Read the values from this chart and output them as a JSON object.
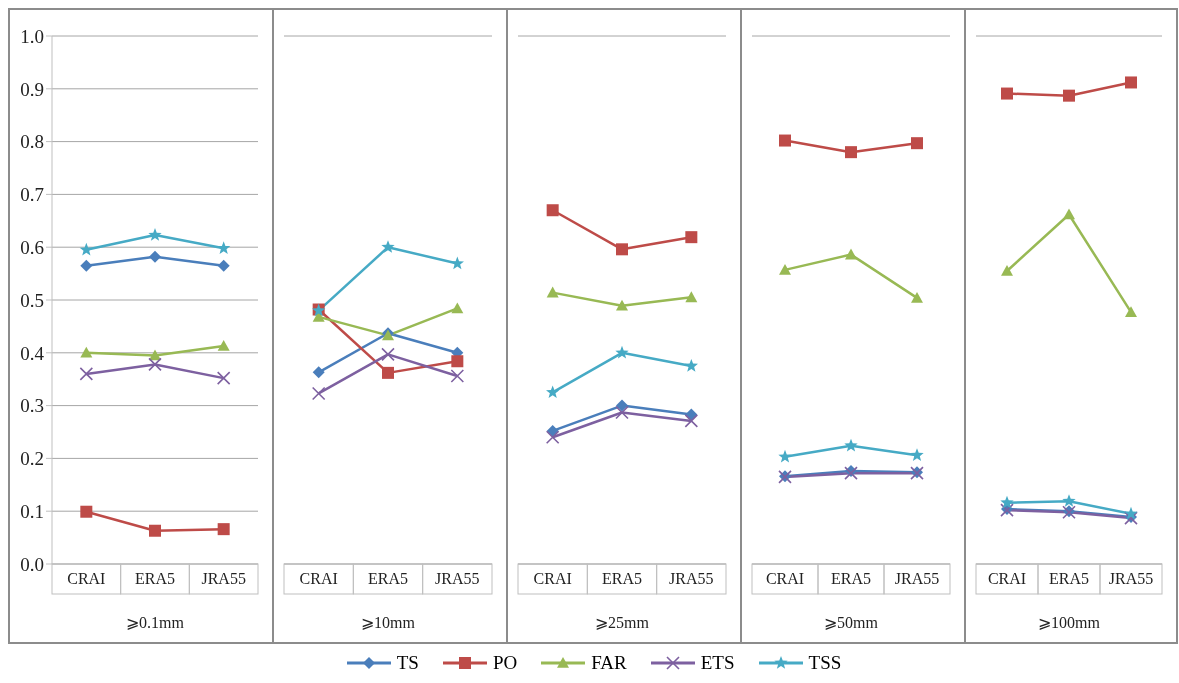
{
  "chart_data": [
    {
      "type": "line",
      "xlabel": "⩾0.1mm",
      "categories": [
        "CRAI",
        "ERA5",
        "JRA55"
      ],
      "ylim": [
        0,
        1
      ],
      "yticks": [
        {
          "value": 0,
          "label": "0.0"
        },
        0.1,
        0.2,
        0.3,
        0.4,
        0.5,
        0.6,
        0.7,
        0.8,
        0.9,
        {
          "value": 1,
          "label": "1.0"
        }
      ],
      "grid": "y",
      "legend": "bottom",
      "line_style": "solid",
      "series": [
        {
          "name": "TS",
          "color": "#4a7ebb",
          "marker": "diamond",
          "values": [
            0.565,
            0.582,
            0.565
          ]
        },
        {
          "name": "PO",
          "color": "#be4b48",
          "marker": "square",
          "values": [
            0.099,
            0.063,
            0.066
          ]
        },
        {
          "name": "FAR",
          "color": "#98b954",
          "marker": "triangle",
          "values": [
            0.4,
            0.395,
            0.413
          ]
        },
        {
          "name": "ETS",
          "color": "#7d60a0",
          "marker": "cross",
          "values": [
            0.36,
            0.378,
            0.352
          ]
        },
        {
          "name": "TSS",
          "color": "#46aac5",
          "marker": "star",
          "values": [
            0.595,
            0.623,
            0.598
          ]
        }
      ]
    },
    {
      "type": "line",
      "xlabel": "⩾10mm",
      "categories": [
        "CRAI",
        "ERA5",
        "JRA55"
      ],
      "ylim": [
        0,
        1
      ],
      "yticks": [
        0,
        0.1,
        0.2,
        0.3,
        0.4,
        0.5,
        0.6,
        0.7,
        0.8,
        0.9,
        1
      ],
      "grid": "y",
      "tick_labels": "x",
      "line_style": "solid",
      "series": [
        {
          "color": "#4a7ebb",
          "marker": "diamond",
          "values": [
            0.363,
            0.437,
            0.4
          ]
        },
        {
          "color": "#be4b48",
          "marker": "square",
          "values": [
            0.482,
            0.362,
            0.384
          ]
        },
        {
          "color": "#98b954",
          "marker": "triangle",
          "values": [
            0.468,
            0.433,
            0.484
          ]
        },
        {
          "color": "#7d60a0",
          "marker": "cross",
          "values": [
            0.323,
            0.397,
            0.356
          ]
        },
        {
          "color": "#46aac5",
          "marker": "star",
          "values": [
            0.48,
            0.6,
            0.569
          ]
        }
      ]
    },
    {
      "type": "line",
      "xlabel": "⩾25mm",
      "categories": [
        "CRAI",
        "ERA5",
        "JRA55"
      ],
      "ylim": [
        0,
        1
      ],
      "yticks": [
        0,
        0.1,
        0.2,
        0.3,
        0.4,
        0.5,
        0.6,
        0.7,
        0.8,
        0.9,
        1
      ],
      "grid": "y",
      "tick_labels": "x",
      "line_style": "solid",
      "series": [
        {
          "color": "#4a7ebb",
          "marker": "diamond",
          "values": [
            0.252,
            0.3,
            0.283
          ]
        },
        {
          "color": "#be4b48",
          "marker": "square",
          "values": [
            0.67,
            0.596,
            0.619
          ]
        },
        {
          "color": "#98b954",
          "marker": "triangle",
          "values": [
            0.514,
            0.489,
            0.505
          ]
        },
        {
          "color": "#7d60a0",
          "marker": "cross",
          "values": [
            0.24,
            0.287,
            0.271
          ]
        },
        {
          "color": "#46aac5",
          "marker": "star",
          "values": [
            0.325,
            0.4,
            0.375
          ]
        }
      ]
    },
    {
      "type": "line",
      "xlabel": "⩾50mm",
      "categories": [
        "CRAI",
        "ERA5",
        "JRA55"
      ],
      "ylim": [
        0,
        1
      ],
      "yticks": [
        0,
        0.1,
        0.2,
        0.3,
        0.4,
        0.5,
        0.6,
        0.7,
        0.8,
        0.9,
        1
      ],
      "grid": "y",
      "tick_labels": "x",
      "line_style": "solid",
      "series": [
        {
          "color": "#4a7ebb",
          "marker": "diamond",
          "values": [
            0.166,
            0.176,
            0.174
          ]
        },
        {
          "color": "#be4b48",
          "marker": "square",
          "values": [
            0.802,
            0.78,
            0.797
          ]
        },
        {
          "color": "#98b954",
          "marker": "triangle",
          "values": [
            0.557,
            0.586,
            0.504
          ]
        },
        {
          "color": "#7d60a0",
          "marker": "cross",
          "values": [
            0.165,
            0.172,
            0.172
          ]
        },
        {
          "color": "#46aac5",
          "marker": "star",
          "values": [
            0.203,
            0.224,
            0.206
          ]
        }
      ]
    },
    {
      "type": "line",
      "xlabel": "⩾100mm",
      "categories": [
        "CRAI",
        "ERA5",
        "JRA55"
      ],
      "ylim": [
        0,
        1
      ],
      "yticks": [
        0,
        0.1,
        0.2,
        0.3,
        0.4,
        0.5,
        0.6,
        0.7,
        0.8,
        0.9,
        1
      ],
      "grid": "y",
      "tick_labels": "x",
      "line_style": "solid",
      "series": [
        {
          "color": "#4a7ebb",
          "marker": "diamond",
          "values": [
            0.104,
            0.1,
            0.089
          ]
        },
        {
          "color": "#be4b48",
          "marker": "square",
          "values": [
            0.891,
            0.887,
            0.912
          ]
        },
        {
          "color": "#98b954",
          "marker": "triangle",
          "values": [
            0.555,
            0.662,
            0.477
          ]
        },
        {
          "color": "#7d60a0",
          "marker": "cross",
          "values": [
            0.102,
            0.098,
            0.087
          ]
        },
        {
          "color": "#46aac5",
          "marker": "star",
          "values": [
            0.116,
            0.119,
            0.095
          ]
        }
      ]
    }
  ]
}
